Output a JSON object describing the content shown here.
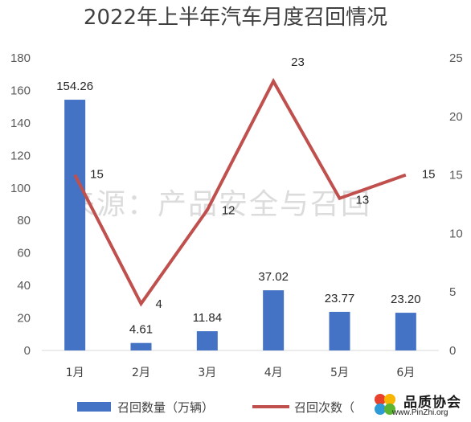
{
  "chart_data": {
    "type": "bar",
    "title": "2022年上半年汽车月度召回情况",
    "categories": [
      "1月",
      "2月",
      "3月",
      "4月",
      "5月",
      "6月"
    ],
    "series": [
      {
        "name": "召回数量（万辆）",
        "type": "bar",
        "axis": "left",
        "color": "#4472c4",
        "values": [
          154.26,
          4.61,
          11.84,
          37.02,
          23.77,
          23.2
        ],
        "labels": [
          "154.26",
          "4.61",
          "11.84",
          "37.02",
          "23.77",
          "23.20"
        ]
      },
      {
        "name": "召回次数",
        "type": "line",
        "axis": "right",
        "color": "#c0504d",
        "values": [
          15,
          4,
          12,
          23,
          13,
          15
        ],
        "labels": [
          "15",
          "4",
          "12",
          "23",
          "13",
          "15"
        ]
      }
    ],
    "y_left": {
      "ylim": [
        0,
        180
      ],
      "ticks": [
        "0",
        "20",
        "40",
        "60",
        "80",
        "100",
        "120",
        "140",
        "160",
        "180"
      ]
    },
    "y_right": {
      "ylim": [
        0,
        25
      ],
      "ticks": [
        "0",
        "5",
        "10",
        "15",
        "20",
        "25"
      ]
    },
    "grid": false,
    "legend": {
      "position": "bottom",
      "entries": [
        "召回数量（万辆）",
        "召回次数（"
      ]
    },
    "watermark": "来源：产品安全与召回"
  },
  "logo": {
    "name": "品质协会",
    "url": "www.PinZhi.org"
  }
}
